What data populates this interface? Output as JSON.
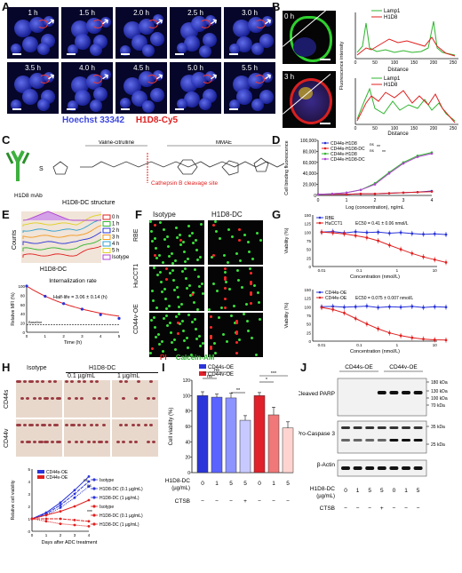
{
  "panels": {
    "A": "A",
    "B": "B",
    "C": "C",
    "D": "D",
    "E": "E",
    "F": "F",
    "G": "G",
    "H": "H",
    "I": "I",
    "J": "J"
  },
  "A": {
    "times": [
      "1 h",
      "1.5 h",
      "2.0 h",
      "2.5 h",
      "3.0 h",
      "3.5 h",
      "4.0 h",
      "4.5 h",
      "5.0 h",
      "5.5 h"
    ],
    "legend_blue": "Hoechst 33342",
    "legend_red": "H1D8-Cy5",
    "colors": {
      "blue": "#3d47e0",
      "red": "#e01f1f"
    }
  },
  "B": {
    "times": [
      "0 h",
      "3 h"
    ],
    "legend": [
      "Lamp1",
      "H1D8"
    ],
    "ylabel": "Fluorescence intensity",
    "xlabel": "Distance",
    "xticks": [
      "0",
      "50",
      "100",
      "150",
      "200",
      "250"
    ]
  },
  "C": {
    "mab": "H1D8 mAb",
    "sh": "S",
    "vc": "Valine-citrulline",
    "mmae": "MMAE",
    "cleavage": "Cathepsin B cleavage site",
    "structure": "H1D8-DC structure"
  },
  "D": {
    "ylabel": "Cell binding fluorescence",
    "xlabel": "Log (concentration), ng/mL",
    "legend": [
      "CD44s-H1D8",
      "CD44s-H1D8-DC",
      "CD44v-H1D8",
      "CD44v-H1D8-DC"
    ],
    "ns": [
      "ns",
      "ns",
      "**",
      "**"
    ],
    "yticks": [
      "100,000",
      "80,000",
      "60,000",
      "40,000",
      "20,000",
      "0"
    ],
    "xticks": [
      "0",
      "1",
      "2",
      "3",
      "4"
    ]
  },
  "E": {
    "hist_legend": [
      "0 h",
      "1 h",
      "2 h",
      "3 h",
      "4 h",
      "5 h",
      "Isotype"
    ],
    "hist_xlabel": "H1D8-DC",
    "hist_ylabel": "Counts",
    "rate_title": "Internalization rate",
    "half_life": "Half-life = 3.06 ± 0.14 (h)",
    "baseline": "Baseline",
    "ylabel": "Relative MFI (%)",
    "xlabel": "Time (h)",
    "yticks": [
      "100",
      "80",
      "60",
      "40",
      "20",
      "0"
    ],
    "xticks": [
      "0",
      "1",
      "2",
      "3",
      "4",
      "5"
    ]
  },
  "F": {
    "cols": [
      "Isotype",
      "H1D8-DC"
    ],
    "rows": [
      "RBE",
      "HuCCT1",
      "CD44v-OE"
    ],
    "legend_pi": "PI",
    "legend_calcein": "Calcein-AM"
  },
  "G": {
    "top_legend": [
      "RBE",
      "HuCCT1"
    ],
    "top_ec50": "EC50 = 0.41 ± 0.06 nmol/L",
    "bottom_legend": [
      "CD44s-OE",
      "CD44v-OE"
    ],
    "bottom_ec50": "EC50 = 0.075 ± 0.007 nmol/L",
    "ylabel": "Viability (%)",
    "xlabel": "Concentration (nmol/L)",
    "yticks": [
      "150",
      "125",
      "100",
      "75",
      "50",
      "25",
      "0"
    ],
    "xticks": [
      "0.01",
      "0.1",
      "1",
      "10"
    ]
  },
  "H": {
    "cols": [
      "Isotype",
      "H1D8-DC"
    ],
    "subcols": [
      "0.1 µg/mL",
      "1 µg/mL"
    ],
    "rows": [
      "CD44s",
      "CD44v"
    ],
    "legend": [
      "CD44s-OE",
      "CD44v-OE",
      "Isotype",
      "H1D8-DC (0.1 µg/mL)",
      "H1D8-DC (1 µg/mL)",
      "Isotype",
      "H1D8-DC (0.1 µg/mL)",
      "H1D8-DC (1 µg/mL)"
    ],
    "ylabel": "Relative cell viability",
    "xlabel": "Days after ADC treatment",
    "yticks": [
      "5",
      "4",
      "3",
      "2",
      "1",
      "0"
    ],
    "xticks": [
      "0",
      "1",
      "2",
      "3",
      "4"
    ],
    "sig": [
      "ns",
      "ns",
      "***"
    ]
  },
  "I": {
    "legend": [
      "CD44s-OE",
      "CD44v-OE"
    ],
    "ylabel": "Cell viability (%)",
    "yticks": [
      "120",
      "100",
      "80",
      "60",
      "40",
      "20",
      "0"
    ],
    "values": [
      100,
      98,
      97,
      68,
      100,
      75,
      58
    ],
    "errors": [
      5,
      4,
      6,
      6,
      4,
      10,
      8
    ],
    "sig": [
      "ns",
      "ns",
      "**",
      "*",
      "***"
    ],
    "row1_label": "H1D8-DC",
    "row1_unit": "(µg/mL)",
    "row1": [
      "0",
      "1",
      "5",
      "5",
      "0",
      "1",
      "5"
    ],
    "row2_label": "CTSB",
    "row2": [
      "−",
      "−",
      "−",
      "+",
      "−",
      "−",
      "−"
    ],
    "colors": {
      "s": "#2a34d8",
      "s2": "#5a63ff",
      "s3": "#8d93ff",
      "s4": "#c8caff",
      "v": "#e0202a",
      "v2": "#f07878",
      "v3": "#ffd4d0"
    }
  },
  "J": {
    "groups": [
      "CD44s-OE",
      "CD44v-OE"
    ],
    "bands": [
      "Cleaved PARP",
      "Pro-Caspase 3",
      "β-Actin"
    ],
    "kda": [
      "180 kDa",
      "130 kDa",
      "100 kDa",
      "70 kDa",
      "35 kDa",
      "25 kDa"
    ],
    "row1_label": "H1D8-DC",
    "row1_unit": "(µg/mL)",
    "row1": [
      "0",
      "1",
      "5",
      "5",
      "0",
      "1",
      "5"
    ],
    "row2_label": "CTSB",
    "row2": [
      "−",
      "−",
      "−",
      "+",
      "−",
      "−",
      "−"
    ]
  }
}
